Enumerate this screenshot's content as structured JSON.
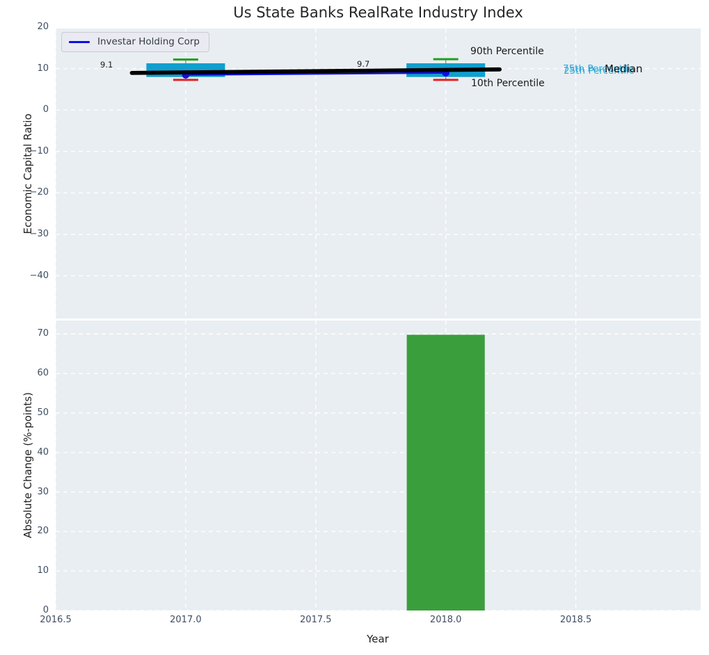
{
  "title": "Us State Banks RealRate Industry Index",
  "legend": {
    "label": "Investar Holding Corp"
  },
  "annotations": {
    "v2017": "9.1",
    "v2018": "9.7"
  },
  "callouts": {
    "p90": "90th Percentile",
    "p10": "10th Percentile",
    "p75": "75th Percentile",
    "p25": "25th Percentile",
    "median": "Median"
  },
  "colors": {
    "plot_bg": "#e9eef2",
    "grid": "#ffffff",
    "box": "#119fce",
    "p90_cap": "#1da01d",
    "p10_cap": "#e02020",
    "whisker_stem": "#888888",
    "median_line": "#000000",
    "company_line": "#0d0de8",
    "bar": "#3b9e3d",
    "tick_text": "#3f4d63",
    "cyan_text": "#2fa8d8"
  },
  "chart_data": [
    {
      "type": "box+line",
      "title": "Us State Banks RealRate Industry Index",
      "ylabel": "Economic Capital Ratio",
      "x": [
        2017,
        2018
      ],
      "series": [
        {
          "name": "Median",
          "style": "thick_black_line",
          "values": [
            9.1,
            9.7
          ],
          "annotations": [
            "9.1",
            "9.7"
          ],
          "extend_years": 0.207
        },
        {
          "name": "Investar Holding Corp",
          "style": "blue_line_dots",
          "values": [
            8.5,
            9.0
          ]
        }
      ],
      "boxes": [
        {
          "x": 2017,
          "p10": 7.3,
          "p25": 8.0,
          "p75": 11.3,
          "p90": 12.2
        },
        {
          "x": 2018,
          "p10": 7.3,
          "p25": 8.0,
          "p75": 11.3,
          "p90": 12.3
        }
      ],
      "ylim": [
        -50.3,
        19.7
      ],
      "yticks": [
        20,
        10,
        0,
        -10,
        -20,
        -30,
        -40
      ],
      "ytick_labels": [
        "20",
        "10",
        "0",
        "−10",
        "−20",
        "−30",
        "−40"
      ],
      "grid": true,
      "legend_position": "upper left"
    },
    {
      "type": "bar",
      "xlabel": "Year",
      "ylabel": "Absolute Change (%-points)",
      "x": [
        2018
      ],
      "values": [
        69.8
      ],
      "bar_width_years": 0.3,
      "ylim": [
        0,
        73.4
      ],
      "yticks": [
        0,
        10,
        20,
        30,
        40,
        50,
        60,
        70
      ],
      "ytick_labels": [
        "0",
        "10",
        "20",
        "30",
        "40",
        "50",
        "60",
        "70"
      ],
      "xticks": [
        2016.5,
        2017.0,
        2017.5,
        2018.0,
        2018.5
      ],
      "xtick_labels": [
        "2016.5",
        "2017.0",
        "2017.5",
        "2018.0",
        "2018.5"
      ],
      "xlim": [
        2016.5,
        2018.98
      ],
      "grid": true
    }
  ]
}
